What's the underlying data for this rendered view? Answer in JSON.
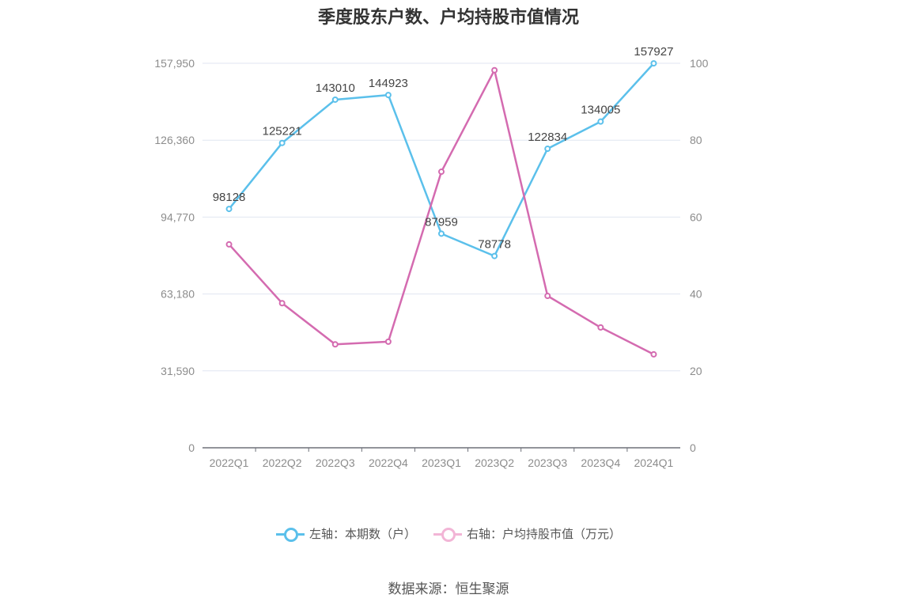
{
  "chart_data": {
    "type": "line",
    "title": "季度股东户数、户均持股市值情况",
    "categories": [
      "2022Q1",
      "2022Q2",
      "2022Q3",
      "2022Q4",
      "2023Q1",
      "2023Q2",
      "2023Q3",
      "2023Q4",
      "2024Q1"
    ],
    "left_axis": {
      "min": 0,
      "max": 157950,
      "ticks": [
        0,
        31590,
        63180,
        94770,
        126360,
        157950
      ],
      "tick_labels": [
        "0",
        "31,590",
        "63,180",
        "94,770",
        "126,360",
        "157,950"
      ]
    },
    "right_axis": {
      "min": 0,
      "max": 100,
      "ticks": [
        0,
        20,
        40,
        60,
        80,
        100
      ],
      "tick_labels": [
        "0",
        "20",
        "40",
        "60",
        "80",
        "100"
      ]
    },
    "series": [
      {
        "name": "左轴：本期数（户）",
        "axis": "left",
        "color": "#5bc0eb",
        "values": [
          98128,
          125221,
          143010,
          144923,
          87959,
          78778,
          122834,
          134005,
          157927
        ],
        "labels": [
          "98128",
          "125221",
          "143010",
          "144923",
          "87959",
          "78778",
          "122834",
          "134005",
          "157927"
        ]
      },
      {
        "name": "右轴：户均持股市值（万元）",
        "axis": "right",
        "color": "#d46bb0",
        "values": [
          52.9,
          37.6,
          26.9,
          27.6,
          71.8,
          98.2,
          39.5,
          31.3,
          24.3
        ]
      }
    ],
    "grid": true,
    "legend_position": "bottom"
  },
  "source_text": "数据来源：恒生聚源"
}
